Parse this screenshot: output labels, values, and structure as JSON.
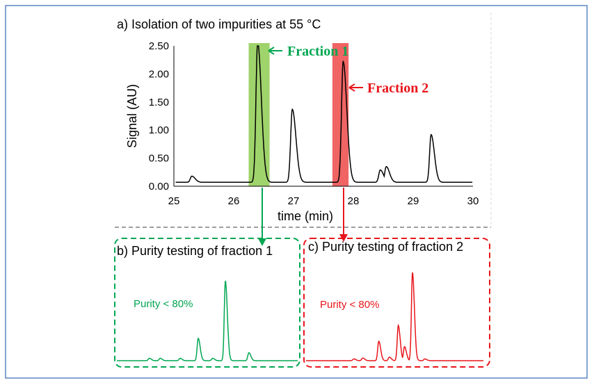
{
  "colors": {
    "border": "#5b86c4",
    "trace": "#000000",
    "fraction1": "#00a651",
    "fraction1_band": "#9fd36b",
    "fraction2": "#e8151b",
    "fraction2_band": "#f06464",
    "separator": "#7f7f7f"
  },
  "chart_data": [
    {
      "panel": "a",
      "type": "line",
      "title": "a) Isolation of two impurities at 55 °C",
      "xlabel": "time (min)",
      "ylabel": "Signal (AU)",
      "xlim": [
        25,
        30
      ],
      "ylim": [
        0,
        2.5
      ],
      "x_ticks": [
        "25",
        "26",
        "27",
        "28",
        "29",
        "30"
      ],
      "y_ticks": [
        "0.00",
        "0.50",
        "1.00",
        "1.50",
        "2.00",
        "2.50"
      ],
      "baseline": 0.07,
      "peaks": [
        {
          "x": 25.3,
          "y": 0.11
        },
        {
          "x": 26.4,
          "y": 2.5
        },
        {
          "x": 26.98,
          "y": 1.3
        },
        {
          "x": 27.83,
          "y": 2.15
        },
        {
          "x": 28.45,
          "y": 0.22
        },
        {
          "x": 28.55,
          "y": 0.28
        },
        {
          "x": 29.3,
          "y": 0.85
        }
      ],
      "highlights": [
        {
          "label": "Fraction 1",
          "x_start": 26.25,
          "x_end": 26.6
        },
        {
          "label": "Fraction 2",
          "x_start": 27.65,
          "x_end": 27.92
        }
      ]
    },
    {
      "panel": "b",
      "type": "line",
      "title": "b) Purity testing of fraction 1",
      "annotation": "Purity < 80%",
      "peaks": [
        {
          "x": 0.18,
          "y": 0.03
        },
        {
          "x": 0.24,
          "y": 0.03
        },
        {
          "x": 0.35,
          "y": 0.03
        },
        {
          "x": 0.45,
          "y": 0.28
        },
        {
          "x": 0.53,
          "y": 0.03
        },
        {
          "x": 0.6,
          "y": 1.0
        },
        {
          "x": 0.73,
          "y": 0.1
        }
      ]
    },
    {
      "panel": "c",
      "type": "line",
      "title": "c) Purity testing of fraction 2",
      "annotation": "Purity < 80%",
      "peaks": [
        {
          "x": 0.27,
          "y": 0.02
        },
        {
          "x": 0.32,
          "y": 0.03
        },
        {
          "x": 0.41,
          "y": 0.22
        },
        {
          "x": 0.47,
          "y": 0.04
        },
        {
          "x": 0.52,
          "y": 0.4
        },
        {
          "x": 0.555,
          "y": 0.16
        },
        {
          "x": 0.6,
          "y": 1.0
        },
        {
          "x": 0.67,
          "y": 0.02
        }
      ]
    }
  ]
}
